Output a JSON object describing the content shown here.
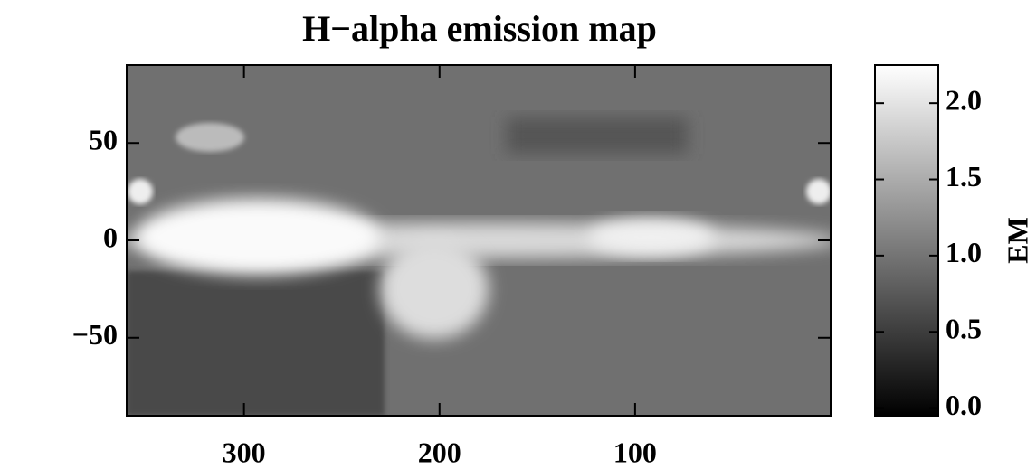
{
  "chart_data": {
    "type": "image",
    "title": "H−alpha emission map",
    "xlim": [
      360,
      0
    ],
    "xticks": [
      300,
      200,
      100
    ],
    "ylim": [
      -90,
      90
    ],
    "yticks": [
      50,
      0,
      {
        "value": -50,
        "label": "−50"
      }
    ],
    "colorbar": {
      "label": "EM",
      "lim": [
        -0.05,
        2.25
      ],
      "ticks": [
        {
          "value": 0,
          "label": "0.0"
        },
        0.5,
        {
          "value": 1,
          "label": "1.0"
        },
        1.5,
        {
          "value": 2,
          "label": "2.0"
        }
      ],
      "colors": [
        "#000000",
        "#ffffff"
      ]
    }
  }
}
